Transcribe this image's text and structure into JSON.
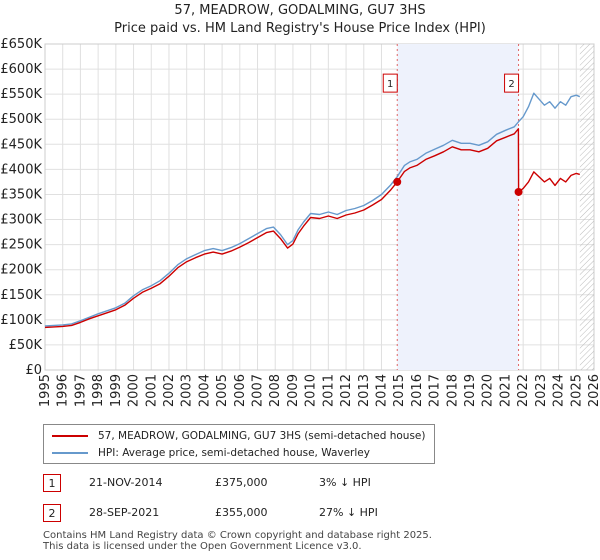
{
  "chart_data": {
    "type": "line",
    "title": "57, MEADROW, GODALMING, GU7 3HS",
    "subtitle": "Price paid vs. HM Land Registry's House Price Index (HPI)",
    "xlim": [
      1995,
      2026
    ],
    "ylim": [
      0,
      650000
    ],
    "x_ticks": [
      "1995",
      "1996",
      "1997",
      "1998",
      "1999",
      "2000",
      "2001",
      "2002",
      "2003",
      "2004",
      "2005",
      "2006",
      "2007",
      "2008",
      "2009",
      "2010",
      "2011",
      "2012",
      "2013",
      "2014",
      "2015",
      "2016",
      "2017",
      "2018",
      "2019",
      "2020",
      "2021",
      "2022",
      "2023",
      "2024",
      "2025",
      "2026"
    ],
    "y_ticks": [
      {
        "value": 0,
        "label": "£0"
      },
      {
        "value": 50000,
        "label": "£50K"
      },
      {
        "value": 100000,
        "label": "£100K"
      },
      {
        "value": 150000,
        "label": "£150K"
      },
      {
        "value": 200000,
        "label": "£200K"
      },
      {
        "value": 250000,
        "label": "£250K"
      },
      {
        "value": 300000,
        "label": "£300K"
      },
      {
        "value": 350000,
        "label": "£350K"
      },
      {
        "value": 400000,
        "label": "£400K"
      },
      {
        "value": 450000,
        "label": "£450K"
      },
      {
        "value": 500000,
        "label": "£500K"
      },
      {
        "value": 550000,
        "label": "£550K"
      },
      {
        "value": 600000,
        "label": "£600K"
      },
      {
        "value": 650000,
        "label": "£650K"
      }
    ],
    "shaded_region": {
      "from": 2014.89,
      "to": 2021.74
    },
    "future_hatch_from": 2025.2,
    "series": [
      {
        "name": "HPI: Average price, semi-detached house, Waverley",
        "color": "#6699cc",
        "x": [
          1995.0,
          1995.5,
          1996.0,
          1996.5,
          1997.0,
          1997.5,
          1998.0,
          1998.5,
          1999.0,
          1999.5,
          2000.0,
          2000.5,
          2001.0,
          2001.5,
          2002.0,
          2002.5,
          2003.0,
          2003.5,
          2004.0,
          2004.5,
          2005.0,
          2005.5,
          2006.0,
          2006.5,
          2007.0,
          2007.5,
          2007.9,
          2008.3,
          2008.7,
          2009.0,
          2009.3,
          2009.6,
          2010.0,
          2010.5,
          2011.0,
          2011.5,
          2012.0,
          2012.5,
          2013.0,
          2013.5,
          2014.0,
          2014.5,
          2014.9,
          2015.3,
          2015.6,
          2016.0,
          2016.5,
          2017.0,
          2017.5,
          2018.0,
          2018.5,
          2019.0,
          2019.5,
          2020.0,
          2020.5,
          2021.0,
          2021.5,
          2021.74,
          2022.0,
          2022.3,
          2022.6,
          2022.9,
          2023.2,
          2023.5,
          2023.8,
          2024.1,
          2024.4,
          2024.7,
          2025.0,
          2025.2
        ],
        "values": [
          88000,
          89000,
          90000,
          92000,
          98000,
          105000,
          112000,
          118000,
          124000,
          133000,
          148000,
          160000,
          168000,
          178000,
          193000,
          210000,
          222000,
          230000,
          238000,
          242000,
          238000,
          244000,
          252000,
          262000,
          272000,
          282000,
          285000,
          270000,
          250000,
          258000,
          280000,
          295000,
          312000,
          310000,
          315000,
          310000,
          318000,
          322000,
          328000,
          338000,
          350000,
          368000,
          386000,
          408000,
          415000,
          420000,
          432000,
          440000,
          448000,
          458000,
          452000,
          452000,
          448000,
          455000,
          470000,
          478000,
          485000,
          495000,
          505000,
          525000,
          552000,
          540000,
          528000,
          535000,
          522000,
          535000,
          528000,
          545000,
          548000,
          545000
        ]
      },
      {
        "name": "57, MEADROW, GODALMING, GU7 3HS (semi-detached house)",
        "color": "#cc0000",
        "x": [
          1995.0,
          1995.5,
          1996.0,
          1996.5,
          1997.0,
          1997.5,
          1998.0,
          1998.5,
          1999.0,
          1999.5,
          2000.0,
          2000.5,
          2001.0,
          2001.5,
          2002.0,
          2002.5,
          2003.0,
          2003.5,
          2004.0,
          2004.5,
          2005.0,
          2005.5,
          2006.0,
          2006.5,
          2007.0,
          2007.5,
          2007.9,
          2008.3,
          2008.7,
          2009.0,
          2009.3,
          2009.6,
          2010.0,
          2010.5,
          2011.0,
          2011.5,
          2012.0,
          2012.5,
          2013.0,
          2013.5,
          2014.0,
          2014.5,
          2014.89,
          2015.3,
          2015.6,
          2016.0,
          2016.5,
          2017.0,
          2017.5,
          2018.0,
          2018.5,
          2019.0,
          2019.5,
          2020.0,
          2020.5,
          2021.0,
          2021.5,
          2021.73,
          2021.74,
          2022.0,
          2022.3,
          2022.6,
          2022.9,
          2023.2,
          2023.5,
          2023.8,
          2024.1,
          2024.4,
          2024.7,
          2025.0,
          2025.2
        ],
        "values": [
          85000,
          86000,
          87000,
          89000,
          95000,
          102000,
          108000,
          114000,
          120000,
          129000,
          143000,
          155000,
          163000,
          172000,
          187000,
          204000,
          216000,
          224000,
          231000,
          235000,
          231000,
          237000,
          245000,
          254000,
          264000,
          274000,
          277000,
          262000,
          243000,
          251000,
          272000,
          287000,
          304000,
          302000,
          307000,
          302000,
          309000,
          313000,
          319000,
          329000,
          340000,
          358000,
          375000,
          396000,
          403000,
          408000,
          420000,
          427000,
          435000,
          445000,
          439000,
          439000,
          435000,
          442000,
          457000,
          464000,
          471000,
          481000,
          355000,
          362000,
          375000,
          395000,
          385000,
          375000,
          382000,
          368000,
          382000,
          375000,
          388000,
          392000,
          390000
        ]
      }
    ],
    "annotations": [
      {
        "label": "1",
        "x": 2014.89,
        "value": 375000,
        "box_value": 572000
      },
      {
        "label": "2",
        "x": 2021.74,
        "value": 355000,
        "box_value": 572000
      }
    ]
  },
  "legend": {
    "items": [
      {
        "label": "57, MEADROW, GODALMING, GU7 3HS (semi-detached house)",
        "color": "#cc0000"
      },
      {
        "label": "HPI: Average price, semi-detached house, Waverley",
        "color": "#6699cc"
      }
    ]
  },
  "sales": [
    {
      "num": "1",
      "date": "21-NOV-2014",
      "price": "£375,000",
      "hpi": "3% ↓ HPI"
    },
    {
      "num": "2",
      "date": "28-SEP-2021",
      "price": "£355,000",
      "hpi": "27% ↓ HPI"
    }
  ],
  "footer": {
    "line1": "Contains HM Land Registry data © Crown copyright and database right 2025.",
    "line2": "This data is licensed under the Open Government Licence v3.0."
  }
}
